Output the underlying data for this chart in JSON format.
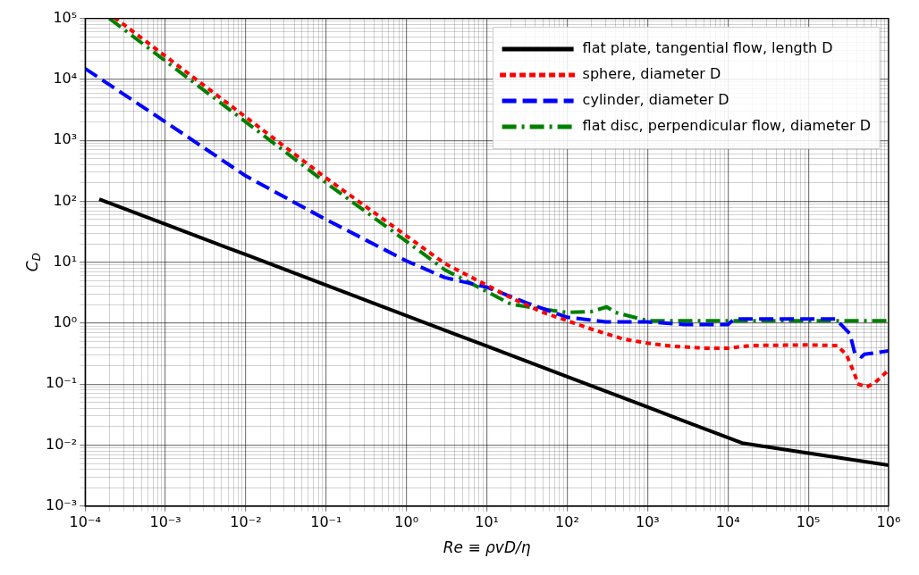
{
  "chart_data": {
    "type": "line",
    "xlabel": "Re ≡ ρvD/η",
    "ylabel": "C$_{D}$",
    "log": "xy",
    "grid": true,
    "legend": "top right",
    "xlim": [
      0.0001,
      1000000.0
    ],
    "ylim": [
      0.001,
      100000.0
    ],
    "xticks": [
      {
        "value": 0.0001,
        "label": "10⁻⁴"
      },
      {
        "value": 0.001,
        "label": "10⁻³"
      },
      {
        "value": 0.01,
        "label": "10⁻²"
      },
      {
        "value": 0.1,
        "label": "10⁻¹"
      },
      {
        "value": 1,
        "label": "10⁰"
      },
      {
        "value": 10,
        "label": "10¹"
      },
      {
        "value": 100,
        "label": "10²"
      },
      {
        "value": 1000,
        "label": "10³"
      },
      {
        "value": 10000.0,
        "label": "10⁴"
      },
      {
        "value": 100000.0,
        "label": "10⁵"
      },
      {
        "value": 1000000.0,
        "label": "10⁶"
      },
      {
        "value": 0.0002,
        "label": null
      },
      {
        "value": 0.0003,
        "label": null
      },
      {
        "value": 0.0004,
        "label": null
      },
      {
        "value": 0.0005,
        "label": null
      },
      {
        "value": 0.0006,
        "label": null
      },
      {
        "value": 0.0007,
        "label": null
      },
      {
        "value": 0.0008,
        "label": null
      },
      {
        "value": 0.0009,
        "label": null
      },
      {
        "value": 0.002,
        "label": null
      },
      {
        "value": 0.003,
        "label": null
      },
      {
        "value": 0.004,
        "label": null
      },
      {
        "value": 0.005,
        "label": null
      },
      {
        "value": 0.006,
        "label": null
      },
      {
        "value": 0.007,
        "label": null
      },
      {
        "value": 0.008,
        "label": null
      },
      {
        "value": 0.009,
        "label": null
      },
      {
        "value": 0.02,
        "label": null
      },
      {
        "value": 0.03,
        "label": null
      },
      {
        "value": 0.04,
        "label": null
      },
      {
        "value": 0.05,
        "label": null
      },
      {
        "value": 0.06,
        "label": null
      },
      {
        "value": 0.07,
        "label": null
      },
      {
        "value": 0.08,
        "label": null
      },
      {
        "value": 0.09,
        "label": null
      },
      {
        "value": 0.2,
        "label": null
      },
      {
        "value": 0.3,
        "label": null
      },
      {
        "value": 0.4,
        "label": null
      },
      {
        "value": 0.5,
        "label": null
      },
      {
        "value": 0.6,
        "label": null
      },
      {
        "value": 0.7,
        "label": null
      },
      {
        "value": 0.8,
        "label": null
      },
      {
        "value": 0.9,
        "label": null
      },
      {
        "value": 2,
        "label": null
      },
      {
        "value": 3,
        "label": null
      },
      {
        "value": 4,
        "label": null
      },
      {
        "value": 5,
        "label": null
      },
      {
        "value": 6,
        "label": null
      },
      {
        "value": 7,
        "label": null
      },
      {
        "value": 8,
        "label": null
      },
      {
        "value": 9,
        "label": null
      },
      {
        "value": 20,
        "label": null
      },
      {
        "value": 30,
        "label": null
      },
      {
        "value": 40,
        "label": null
      },
      {
        "value": 50,
        "label": null
      },
      {
        "value": 60,
        "label": null
      },
      {
        "value": 70,
        "label": null
      },
      {
        "value": 80,
        "label": null
      },
      {
        "value": 90,
        "label": null
      },
      {
        "value": 200,
        "label": null
      },
      {
        "value": 300,
        "label": null
      },
      {
        "value": 400,
        "label": null
      },
      {
        "value": 500,
        "label": null
      },
      {
        "value": 600,
        "label": null
      },
      {
        "value": 700,
        "label": null
      },
      {
        "value": 800,
        "label": null
      },
      {
        "value": 900,
        "label": null
      },
      {
        "value": 2000,
        "label": null
      },
      {
        "value": 3000,
        "label": null
      },
      {
        "value": 4000,
        "label": null
      },
      {
        "value": 5000,
        "label": null
      },
      {
        "value": 6000,
        "label": null
      },
      {
        "value": 7000,
        "label": null
      },
      {
        "value": 8000,
        "label": null
      },
      {
        "value": 9000,
        "label": null
      },
      {
        "value": 20000.0,
        "label": null
      },
      {
        "value": 30000.0,
        "label": null
      },
      {
        "value": 40000.0,
        "label": null
      },
      {
        "value": 50000.0,
        "label": null
      },
      {
        "value": 60000.0,
        "label": null
      },
      {
        "value": 70000.0,
        "label": null
      },
      {
        "value": 80000.0,
        "label": null
      },
      {
        "value": 90000.0,
        "label": null
      },
      {
        "value": 200000.0,
        "label": null
      },
      {
        "value": 300000.0,
        "label": null
      },
      {
        "value": 400000.0,
        "label": null
      },
      {
        "value": 500000.0,
        "label": null
      },
      {
        "value": 600000.0,
        "label": null
      },
      {
        "value": 700000.0,
        "label": null
      },
      {
        "value": 800000.0,
        "label": null
      },
      {
        "value": 900000.0,
        "label": null
      }
    ],
    "yticks": [
      {
        "value": 0.001,
        "label": "10⁻³"
      },
      {
        "value": 0.01,
        "label": "10⁻²"
      },
      {
        "value": 0.1,
        "label": "10⁻¹"
      },
      {
        "value": 1,
        "label": "10⁰"
      },
      {
        "value": 10,
        "label": "10¹"
      },
      {
        "value": 100,
        "label": "10²"
      },
      {
        "value": 1000,
        "label": "10³"
      },
      {
        "value": 10000.0,
        "label": "10⁴"
      },
      {
        "value": 100000.0,
        "label": "10⁵"
      },
      {
        "value": 0.002,
        "label": null
      },
      {
        "value": 0.003,
        "label": null
      },
      {
        "value": 0.004,
        "label": null
      },
      {
        "value": 0.005,
        "label": null
      },
      {
        "value": 0.006,
        "label": null
      },
      {
        "value": 0.007,
        "label": null
      },
      {
        "value": 0.008,
        "label": null
      },
      {
        "value": 0.009,
        "label": null
      },
      {
        "value": 0.02,
        "label": null
      },
      {
        "value": 0.03,
        "label": null
      },
      {
        "value": 0.04,
        "label": null
      },
      {
        "value": 0.05,
        "label": null
      },
      {
        "value": 0.06,
        "label": null
      },
      {
        "value": 0.07,
        "label": null
      },
      {
        "value": 0.08,
        "label": null
      },
      {
        "value": 0.09,
        "label": null
      },
      {
        "value": 0.2,
        "label": null
      },
      {
        "value": 0.3,
        "label": null
      },
      {
        "value": 0.4,
        "label": null
      },
      {
        "value": 0.5,
        "label": null
      },
      {
        "value": 0.6,
        "label": null
      },
      {
        "value": 0.7,
        "label": null
      },
      {
        "value": 0.8,
        "label": null
      },
      {
        "value": 0.9,
        "label": null
      },
      {
        "value": 2,
        "label": null
      },
      {
        "value": 3,
        "label": null
      },
      {
        "value": 4,
        "label": null
      },
      {
        "value": 5,
        "label": null
      },
      {
        "value": 6,
        "label": null
      },
      {
        "value": 7,
        "label": null
      },
      {
        "value": 8,
        "label": null
      },
      {
        "value": 9,
        "label": null
      },
      {
        "value": 20,
        "label": null
      },
      {
        "value": 30,
        "label": null
      },
      {
        "value": 40,
        "label": null
      },
      {
        "value": 50,
        "label": null
      },
      {
        "value": 60,
        "label": null
      },
      {
        "value": 70,
        "label": null
      },
      {
        "value": 80,
        "label": null
      },
      {
        "value": 90,
        "label": null
      },
      {
        "value": 200,
        "label": null
      },
      {
        "value": 300,
        "label": null
      },
      {
        "value": 400,
        "label": null
      },
      {
        "value": 500,
        "label": null
      },
      {
        "value": 600,
        "label": null
      },
      {
        "value": 700,
        "label": null
      },
      {
        "value": 800,
        "label": null
      },
      {
        "value": 900,
        "label": null
      },
      {
        "value": 2000,
        "label": null
      },
      {
        "value": 3000,
        "label": null
      },
      {
        "value": 4000,
        "label": null
      },
      {
        "value": 5000,
        "label": null
      },
      {
        "value": 6000,
        "label": null
      },
      {
        "value": 7000,
        "label": null
      },
      {
        "value": 8000,
        "label": null
      },
      {
        "value": 9000,
        "label": null
      },
      {
        "value": 20000.0,
        "label": null
      },
      {
        "value": 30000.0,
        "label": null
      },
      {
        "value": 40000.0,
        "label": null
      },
      {
        "value": 50000.0,
        "label": null
      },
      {
        "value": 60000.0,
        "label": null
      },
      {
        "value": 70000.0,
        "label": null
      },
      {
        "value": 80000.0,
        "label": null
      },
      {
        "value": 90000.0,
        "label": null
      }
    ],
    "series": [
      {
        "name": "flat plate, tangential flow, length D",
        "color": "#000000",
        "line_style": "solid",
        "x": [
          0.00015,
          0.001,
          0.01,
          0.1,
          1,
          10,
          100,
          1000,
          15000.0,
          100000.0,
          1000000.0
        ],
        "values": [
          108,
          42,
          13.3,
          4.2,
          1.33,
          0.42,
          0.133,
          0.042,
          0.0108,
          0.0074,
          0.0047
        ]
      },
      {
        "name": "sphere, diameter D",
        "color": "#ff0000",
        "line_style": "dotted",
        "x": [
          0.00024,
          0.001,
          0.01,
          0.1,
          1,
          3,
          10,
          20,
          50,
          100,
          200,
          500,
          1000,
          2000,
          5000,
          10000.0,
          20000.0,
          100000.0,
          230000.0,
          300000.0,
          360000.0,
          420000.0,
          540000.0,
          700000.0,
          1000000.0
        ],
        "values": [
          100000,
          24000,
          2400,
          240,
          27,
          9.5,
          4.2,
          2.6,
          1.5,
          1.1,
          0.8,
          0.55,
          0.47,
          0.42,
          0.39,
          0.39,
          0.43,
          0.44,
          0.43,
          0.3,
          0.17,
          0.1,
          0.09,
          0.11,
          0.17
        ]
      },
      {
        "name": "cylinder, diameter D",
        "color": "#0000ff",
        "line_style": "dashed",
        "x": [
          0.0001,
          0.001,
          0.01,
          0.1,
          1,
          3,
          10,
          30,
          100,
          300,
          1000,
          3000,
          10000.0,
          12000.0,
          220000.0,
          330000.0,
          380000.0,
          460000.0,
          500000.0,
          1000000.0
        ],
        "values": [
          15000,
          2000,
          260,
          50,
          10.5,
          5.6,
          3.9,
          2.2,
          1.25,
          1.05,
          1.05,
          0.95,
          0.95,
          1.17,
          1.17,
          0.67,
          0.32,
          0.28,
          0.31,
          0.35
        ]
      },
      {
        "name": "flat disc, perpendicular flow, diameter D",
        "color": "#008000",
        "line_style": "dashdot",
        "x": [
          0.0002,
          0.001,
          0.01,
          0.1,
          1,
          3,
          6.8,
          20,
          50,
          100,
          200,
          310,
          400,
          1000,
          1000000.0
        ],
        "values": [
          100000,
          20000,
          2000,
          200,
          22,
          7.5,
          4.3,
          2.05,
          1.7,
          1.5,
          1.55,
          1.85,
          1.5,
          1.1,
          1.1
        ]
      }
    ]
  }
}
